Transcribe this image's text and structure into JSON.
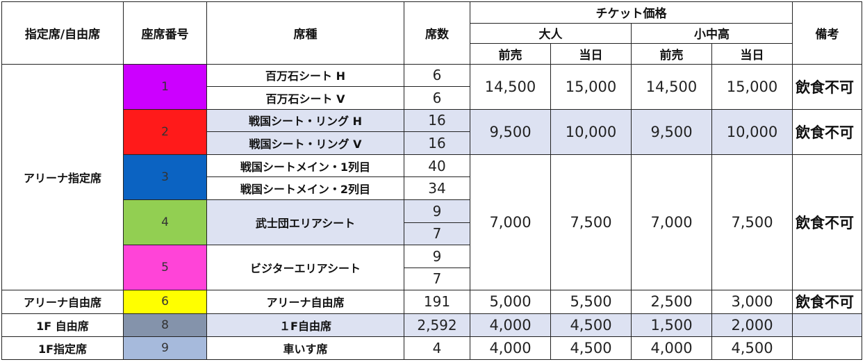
{
  "headers": {
    "designation": "指定席/自由席",
    "seat_number": "座席番号",
    "seat_type": "席種",
    "seat_count": "席数",
    "ticket_price": "チケット価格",
    "adult": "大人",
    "child": "小中高",
    "advance": "前売",
    "same_day": "当日",
    "remarks": "備考"
  },
  "categories": {
    "arena_reserved": "アリーナ指定席",
    "arena_free": "アリーナ自由席",
    "f1_free": "1F 自由席",
    "f1_reserved": "1F指定席"
  },
  "colors": {
    "1": "#cc00ff",
    "2": "#ff1a1a",
    "3": "#0b63c2",
    "4": "#92cf52",
    "5": "#ff44d8",
    "6": "#ffff00",
    "8": "#8493ab",
    "9": "#a6badc",
    "shade": "#dde2f2"
  },
  "rows": {
    "r1": {
      "seat_number": "1",
      "type_a": "百万石シート H",
      "count_a": "6",
      "type_b": "百万石シート V",
      "count_b": "6",
      "adult_adv": "14,500",
      "adult_day": "15,000",
      "child_adv": "14,500",
      "child_day": "15,000",
      "note": "飲食不可"
    },
    "r2": {
      "seat_number": "2",
      "type_a": "戦国シート・リング H",
      "count_a": "16",
      "type_b": "戦国シート・リング V",
      "count_b": "16",
      "adult_adv": "9,500",
      "adult_day": "10,000",
      "child_adv": "9,500",
      "child_day": "10,000",
      "note": "飲食不可"
    },
    "r3": {
      "seat_number": "3",
      "type_a": "戦国シートメイン・1列目",
      "count_a": "40",
      "type_b": "戦国シートメイン・2列目",
      "count_b": "34"
    },
    "r4": {
      "seat_number": "4",
      "type": "武士団エリアシート",
      "count_a": "9",
      "count_b": "7"
    },
    "r5": {
      "seat_number": "5",
      "type": "ビジターエリアシート",
      "count_a": "9",
      "count_b": "7"
    },
    "r345_prices": {
      "adult_adv": "7,000",
      "adult_day": "7,500",
      "child_adv": "7,000",
      "child_day": "7,500",
      "note": "飲食不可"
    },
    "r6": {
      "seat_number": "6",
      "type": "アリーナ自由席",
      "count": "191",
      "adult_adv": "5,000",
      "adult_day": "5,500",
      "child_adv": "2,500",
      "child_day": "3,000",
      "note": "飲食不可"
    },
    "r8": {
      "seat_number": "8",
      "type": "１F自由席",
      "count": "2,592",
      "adult_adv": "4,000",
      "adult_day": "4,500",
      "child_adv": "1,500",
      "child_day": "2,000",
      "note": ""
    },
    "r9": {
      "seat_number": "9",
      "type": "車いす席",
      "count": "4",
      "adult_adv": "4,000",
      "adult_day": "4,500",
      "child_adv": "4,000",
      "child_day": "4,500",
      "note": ""
    }
  }
}
